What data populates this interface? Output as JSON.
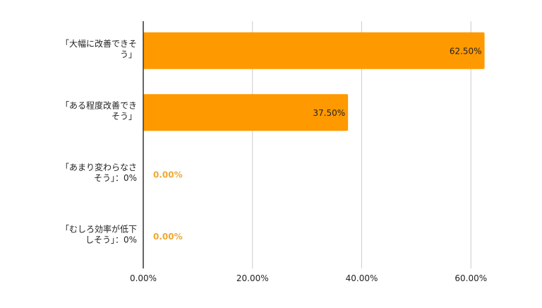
{
  "chart_data": {
    "type": "bar",
    "orientation": "horizontal",
    "categories": [
      [
        "「大幅に改善できそ",
        "う」"
      ],
      [
        "「ある程度改善でき",
        "そう」"
      ],
      [
        "「あまり変わらなさ",
        "そう」：0%"
      ],
      [
        "「むしろ効率が低下",
        "しそう」：0%"
      ]
    ],
    "values": [
      62.5,
      37.5,
      0,
      0
    ],
    "data_labels": [
      "62.50%",
      "37.50%",
      "0.00%",
      "0.00%"
    ],
    "x_ticks": [
      {
        "value": 0,
        "label": "0.00%"
      },
      {
        "value": 20,
        "label": "20.00%"
      },
      {
        "value": 40,
        "label": "40.00%"
      },
      {
        "value": 60,
        "label": "60.00%"
      },
      {
        "value": 80,
        "label": ""
      }
    ],
    "xlim": [
      0,
      80
    ],
    "grid": true,
    "legend": "none",
    "colors": {
      "bar": "#ff9900",
      "zero_label": "#f0a830",
      "label_inside": "#222222",
      "axis": "#333333",
      "grid": "#cccccc",
      "text": "#222222"
    }
  }
}
